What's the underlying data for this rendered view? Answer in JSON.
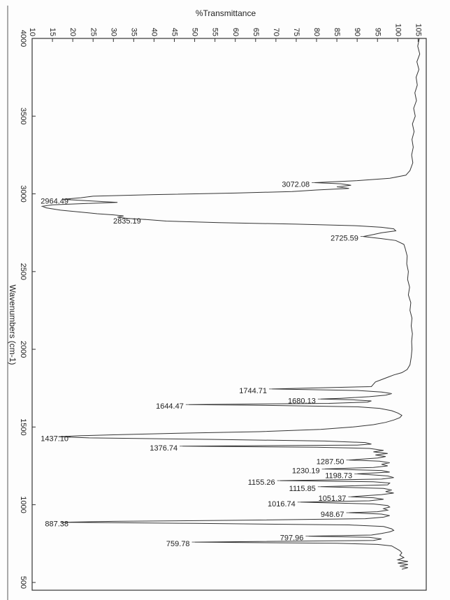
{
  "chart_data": {
    "type": "line",
    "orientation": "rotated",
    "title": "%Transmittance",
    "xlabel": "Wavenumbers (cm-1)",
    "ylabel": "%Transmittance",
    "xlim": [
      4000,
      450
    ],
    "ylim": [
      10,
      107
    ],
    "x_ticks": [
      "4000",
      "3500",
      "3000",
      "2500",
      "2000",
      "1500",
      "1000",
      "500"
    ],
    "y_ticks": [
      "10",
      "15",
      "20",
      "25",
      "30",
      "35",
      "40",
      "45",
      "50",
      "55",
      "60",
      "65",
      "70",
      "75",
      "80",
      "85",
      "90",
      "95",
      "100",
      "105"
    ],
    "grid": false,
    "series": [
      {
        "points": [
          [
            4000,
            105.3
          ],
          [
            3950,
            104.9
          ],
          [
            3900,
            105.4
          ],
          [
            3850,
            104.7
          ],
          [
            3800,
            105.2
          ],
          [
            3750,
            104.5
          ],
          [
            3700,
            104.8
          ],
          [
            3650,
            104.2
          ],
          [
            3600,
            104.6
          ],
          [
            3550,
            103.9
          ],
          [
            3500,
            104.3
          ],
          [
            3450,
            103.6
          ],
          [
            3400,
            104.0
          ],
          [
            3350,
            103.5
          ],
          [
            3300,
            103.8
          ],
          [
            3250,
            103.4
          ],
          [
            3200,
            103.7
          ],
          [
            3150,
            103.0
          ],
          [
            3120,
            102.0
          ],
          [
            3100,
            98.0
          ],
          [
            3085,
            90.0
          ],
          [
            3072.08,
            79.5
          ],
          [
            3065,
            86.0
          ],
          [
            3055,
            88.5
          ],
          [
            3045,
            85.0
          ],
          [
            3035,
            88.0
          ],
          [
            3025,
            80.0
          ],
          [
            3015,
            74.0
          ],
          [
            3005,
            60.0
          ],
          [
            2995,
            40.0
          ],
          [
            2985,
            25.0
          ],
          [
            2975,
            22.0
          ],
          [
            2964.49,
            17.5
          ],
          [
            2955,
            24.0
          ],
          [
            2945,
            31.0
          ],
          [
            2937,
            22.0
          ],
          [
            2929,
            15.0
          ],
          [
            2920,
            12.5
          ],
          [
            2910,
            13.5
          ],
          [
            2895,
            17.0
          ],
          [
            2880,
            23.0
          ],
          [
            2872,
            26.0
          ],
          [
            2865,
            30.0
          ],
          [
            2858,
            32.5
          ],
          [
            2850,
            31.0
          ],
          [
            2842,
            33.5
          ],
          [
            2835.19,
            38.0
          ],
          [
            2825,
            43.0
          ],
          [
            2815,
            56.0
          ],
          [
            2805,
            75.0
          ],
          [
            2795,
            90.0
          ],
          [
            2785,
            96.0
          ],
          [
            2775,
            99.0
          ],
          [
            2762,
            99.5
          ],
          [
            2750,
            96.0
          ],
          [
            2738,
            94.0
          ],
          [
            2725.59,
            91.5
          ],
          [
            2712,
            96.0
          ],
          [
            2700,
            99.5
          ],
          [
            2675,
            101.5
          ],
          [
            2650,
            101.8
          ],
          [
            2600,
            102.3
          ],
          [
            2550,
            102.2
          ],
          [
            2500,
            102.6
          ],
          [
            2450,
            102.4
          ],
          [
            2400,
            102.9
          ],
          [
            2350,
            102.6
          ],
          [
            2300,
            103.2
          ],
          [
            2250,
            103.0
          ],
          [
            2200,
            103.5
          ],
          [
            2150,
            103.3
          ],
          [
            2100,
            103.6
          ],
          [
            2050,
            103.4
          ],
          [
            2000,
            103.5
          ],
          [
            1950,
            103.3
          ],
          [
            1900,
            103.0
          ],
          [
            1870,
            102.3
          ],
          [
            1850,
            101.0
          ],
          [
            1835,
            99.0
          ],
          [
            1820,
            97.5
          ],
          [
            1805,
            96.0
          ],
          [
            1790,
            94.5
          ],
          [
            1775,
            94.0
          ],
          [
            1760,
            93.5
          ],
          [
            1744.71,
            69.0
          ],
          [
            1735,
            90.0
          ],
          [
            1725,
            96.0
          ],
          [
            1715,
            98.5
          ],
          [
            1705,
            97.0
          ],
          [
            1695,
            93.0
          ],
          [
            1685,
            86.0
          ],
          [
            1680.13,
            81.0
          ],
          [
            1675,
            89.0
          ],
          [
            1668,
            93.5
          ],
          [
            1660,
            92.5
          ],
          [
            1652,
            83.0
          ],
          [
            1644.47,
            48.5
          ],
          [
            1638,
            71.0
          ],
          [
            1630,
            90.0
          ],
          [
            1620,
            95.5
          ],
          [
            1605,
            98.5
          ],
          [
            1590,
            100.0
          ],
          [
            1575,
            101.0
          ],
          [
            1560,
            100.5
          ],
          [
            1545,
            99.0
          ],
          [
            1530,
            97.0
          ],
          [
            1515,
            94.0
          ],
          [
            1500,
            89.0
          ],
          [
            1485,
            81.0
          ],
          [
            1470,
            66.0
          ],
          [
            1460,
            46.0
          ],
          [
            1450,
            30.0
          ],
          [
            1444,
            22.0
          ],
          [
            1437.1,
            16.5
          ],
          [
            1430,
            24.0
          ],
          [
            1420,
            55.0
          ],
          [
            1410,
            82.0
          ],
          [
            1400,
            92.0
          ],
          [
            1390,
            93.5
          ],
          [
            1384,
            90.0
          ],
          [
            1376.74,
            47.0
          ],
          [
            1370,
            80.0
          ],
          [
            1362,
            93.0
          ],
          [
            1350,
            96.5
          ],
          [
            1340,
            94.0
          ],
          [
            1330,
            97.5
          ],
          [
            1320,
            94.5
          ],
          [
            1310,
            97.0
          ],
          [
            1300,
            95.0
          ],
          [
            1287.5,
            88.0
          ],
          [
            1280,
            95.5
          ],
          [
            1270,
            98.0
          ],
          [
            1260,
            96.0
          ],
          [
            1250,
            97.5
          ],
          [
            1240,
            94.0
          ],
          [
            1230.19,
            82.0
          ],
          [
            1220,
            96.0
          ],
          [
            1210,
            98.0
          ],
          [
            1198.73,
            90.0
          ],
          [
            1185,
            97.5
          ],
          [
            1175,
            99.0
          ],
          [
            1165,
            96.0
          ],
          [
            1155.26,
            71.0
          ],
          [
            1148,
            94.0
          ],
          [
            1140,
            98.0
          ],
          [
            1128,
            97.5
          ],
          [
            1115.85,
            81.0
          ],
          [
            1105,
            96.5
          ],
          [
            1095,
            98.5
          ],
          [
            1085,
            97.0
          ],
          [
            1075,
            99.0
          ],
          [
            1065,
            96.0
          ],
          [
            1051.37,
            88.5
          ],
          [
            1045,
            94.0
          ],
          [
            1035,
            96.5
          ],
          [
            1025,
            93.0
          ],
          [
            1016.74,
            76.0
          ],
          [
            1005,
            94.0
          ],
          [
            995,
            97.5
          ],
          [
            985,
            98.0
          ],
          [
            975,
            96.5
          ],
          [
            965,
            97.5
          ],
          [
            955,
            95.0
          ],
          [
            948.67,
            88.0
          ],
          [
            940,
            96.0
          ],
          [
            930,
            98.0
          ],
          [
            920,
            96.5
          ],
          [
            910,
            92.0
          ],
          [
            900,
            60.0
          ],
          [
            893,
            30.0
          ],
          [
            887.38,
            17.0
          ],
          [
            880,
            50.0
          ],
          [
            870,
            88.0
          ],
          [
            860,
            96.5
          ],
          [
            845,
            98.5
          ],
          [
            835,
            99.0
          ],
          [
            825,
            98.0
          ],
          [
            815,
            96.0
          ],
          [
            805,
            93.5
          ],
          [
            797.96,
            78.0
          ],
          [
            790,
            93.0
          ],
          [
            780,
            96.0
          ],
          [
            770,
            94.0
          ],
          [
            759.78,
            50.0
          ],
          [
            752,
            85.0
          ],
          [
            745,
            95.0
          ],
          [
            735,
            98.5
          ],
          [
            720,
            99.5
          ],
          [
            705,
            100.5
          ],
          [
            690,
            101.0
          ],
          [
            675,
            100.5
          ],
          [
            660,
            101.5
          ],
          [
            645,
            100.0
          ],
          [
            635,
            102.5
          ],
          [
            625,
            100.0
          ],
          [
            615,
            102.5
          ],
          [
            605,
            100.5
          ],
          [
            595,
            102.5
          ],
          [
            585,
            101.0
          ]
        ]
      }
    ],
    "annotations": [
      {
        "label": "3072.08",
        "x": 3072.08
      },
      {
        "label": "2964.49",
        "x": 2964.49
      },
      {
        "label": "2835.19",
        "x": 2835.19
      },
      {
        "label": "2725.59",
        "x": 2725.59
      },
      {
        "label": "1744.71",
        "x": 1744.71
      },
      {
        "label": "1680.13",
        "x": 1680.13
      },
      {
        "label": "1644.47",
        "x": 1644.47
      },
      {
        "label": "1437.10",
        "x": 1437.1
      },
      {
        "label": "1376.74",
        "x": 1376.74
      },
      {
        "label": "1287.50",
        "x": 1287.5
      },
      {
        "label": "1230.19",
        "x": 1230.19
      },
      {
        "label": "1198.73",
        "x": 1198.73
      },
      {
        "label": "1155.26",
        "x": 1155.26
      },
      {
        "label": "1115.85",
        "x": 1115.85
      },
      {
        "label": "1051.37",
        "x": 1051.37
      },
      {
        "label": "1016.74",
        "x": 1016.74
      },
      {
        "label": "948.67",
        "x": 948.67
      },
      {
        "label": "887.38",
        "x": 887.38
      },
      {
        "label": "797.96",
        "x": 797.96
      },
      {
        "label": "759.78",
        "x": 759.78
      }
    ]
  }
}
